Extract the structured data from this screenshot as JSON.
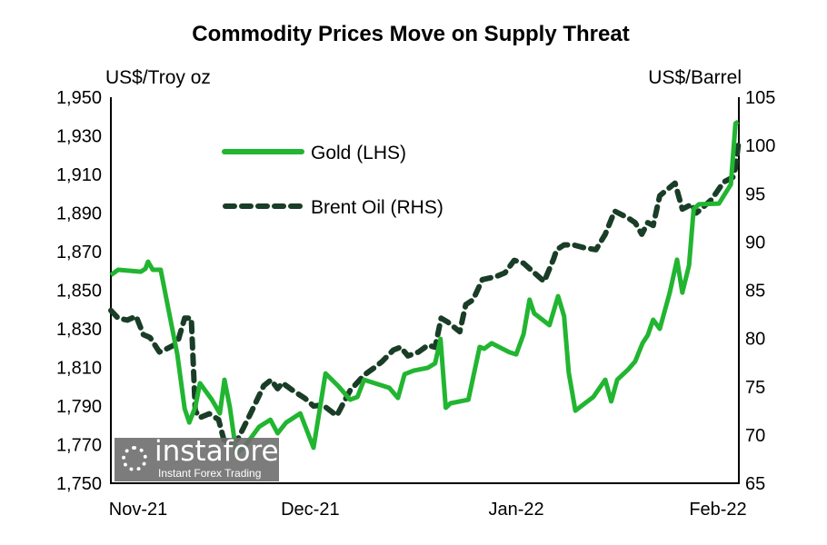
{
  "chart_data": {
    "type": "line",
    "title": "Commodity Prices Move on Supply Threat",
    "ylabel_left": "US$/Troy oz",
    "ylabel_right": "US$/Barrel",
    "xlabel": "",
    "x_units": "days since Nov 1, 2021",
    "xlim": [
      0,
      94.5
    ],
    "ylim_left": [
      1750,
      1950
    ],
    "ylim_right": [
      65,
      105
    ],
    "yticks_left": [
      "1,750",
      "1,770",
      "1,790",
      "1,810",
      "1,830",
      "1,850",
      "1,870",
      "1,890",
      "1,910",
      "1,930",
      "1,950"
    ],
    "yticks_left_values": [
      1750,
      1770,
      1790,
      1810,
      1830,
      1850,
      1870,
      1890,
      1910,
      1930,
      1950
    ],
    "yticks_right": [
      "65",
      "70",
      "75",
      "80",
      "85",
      "90",
      "95",
      "100",
      "105"
    ],
    "yticks_right_values": [
      65,
      70,
      75,
      80,
      85,
      90,
      95,
      100,
      105
    ],
    "xticks": [
      {
        "label": "Nov-21",
        "x": 0
      },
      {
        "label": "Dec-21",
        "x": 30
      },
      {
        "label": "Jan-22",
        "x": 61
      },
      {
        "label": "Feb-22",
        "x": 92
      }
    ],
    "grid": false,
    "legend_position": "top-left",
    "series": [
      {
        "name": "Gold (LHS)",
        "axis": "left",
        "color": "#22b532",
        "style": "solid",
        "x": [
          0,
          1.1,
          4.5,
          5.2,
          5.6,
          6.3,
          7.5,
          10,
          11.1,
          11.8,
          12.7,
          13.4,
          15.2,
          16.4,
          17.1,
          17.9,
          18.9,
          20.3,
          22.3,
          24,
          25.1,
          26.4,
          28.5,
          30.5,
          32.3,
          34.2,
          36,
          37.1,
          38.1,
          39.7,
          41.9,
          43.2,
          44.2,
          45.6,
          47.7,
          48.8,
          49.6,
          50.4,
          51.1,
          53.8,
          55.5,
          56.2,
          57.3,
          60,
          61,
          62.1,
          63,
          63.7,
          66,
          67.3,
          68.2,
          68.9,
          69.9,
          71,
          72.6,
          74.4,
          75.3,
          76.2,
          77.8,
          78.9,
          80,
          80.8,
          81.6,
          82.6,
          84.1,
          85.2,
          86,
          87,
          87.7,
          88.5,
          91.5,
          93.3,
          94,
          94.4
        ],
        "y": [
          1857.8,
          1860.6,
          1859.6,
          1861.1,
          1864.8,
          1860.6,
          1860.6,
          1816.8,
          1788.6,
          1781.5,
          1789.5,
          1801.8,
          1793.3,
          1786.2,
          1803.6,
          1789.5,
          1765.1,
          1769.8,
          1779.2,
          1782.9,
          1775.9,
          1781.5,
          1786.2,
          1768.4,
          1806.9,
          1800.4,
          1793.3,
          1794.7,
          1803.6,
          1801.8,
          1799.4,
          1794.2,
          1806.5,
          1808.4,
          1809.8,
          1812.1,
          1824.8,
          1789.1,
          1791.4,
          1793.3,
          1820.6,
          1819.7,
          1822.5,
          1817.8,
          1816.8,
          1827.2,
          1845.1,
          1838,
          1831.9,
          1846.9,
          1836.6,
          1807.4,
          1787.6,
          1790.5,
          1794.7,
          1803.6,
          1792.4,
          1803.6,
          1808.8,
          1813.1,
          1822.5,
          1826.7,
          1834.7,
          1830,
          1848.8,
          1865.8,
          1848.8,
          1862.9,
          1892.1,
          1894.5,
          1894.9,
          1904.8,
          1936.4,
          1937.3
        ]
      },
      {
        "name": "Brent Oil (RHS)",
        "axis": "right",
        "color": "#1a3d27",
        "style": "dashed",
        "x": [
          0,
          1.1,
          2.5,
          3.8,
          4.9,
          5.9,
          7.3,
          8.6,
          10,
          11.1,
          12.1,
          12.7,
          13.4,
          14.8,
          16.2,
          17,
          18.2,
          19.2,
          21,
          23,
          24.1,
          25.1,
          25.8,
          27.4,
          29.2,
          30.5,
          31.9,
          34,
          35.3,
          36,
          38.1,
          39.7,
          40.8,
          42.5,
          43.6,
          44.7,
          46.3,
          47.7,
          48.8,
          49.7,
          50.7,
          52.5,
          53.4,
          54.5,
          55.9,
          57.9,
          59.3,
          60.7,
          62.1,
          63.4,
          65.2,
          66.6,
          67.1,
          68.2,
          69.6,
          71.2,
          73,
          74.4,
          75.8,
          77.8,
          78.9,
          79.9,
          80.8,
          81.6,
          82.6,
          84.9,
          86,
          87.4,
          88.1,
          88.8,
          90.4,
          92.2,
          93.6,
          94,
          94.4
        ],
        "y": [
          82.9,
          82.1,
          81.9,
          82.3,
          80.4,
          80.1,
          78.6,
          79,
          79.5,
          82.1,
          82.1,
          72.5,
          71.8,
          72.2,
          71.6,
          69.5,
          69.1,
          69.7,
          72.2,
          75.1,
          75.7,
          74.8,
          75.4,
          74.6,
          73.8,
          73,
          73.1,
          72,
          73.7,
          74.6,
          76.2,
          77,
          77.6,
          78.8,
          79.1,
          78.2,
          78.6,
          79.3,
          79.1,
          82.1,
          81.7,
          80.7,
          83.5,
          84,
          86.1,
          86.4,
          86.8,
          88.1,
          87.8,
          87,
          85.9,
          88.2,
          89.2,
          89.7,
          89.7,
          89.4,
          89.2,
          90.8,
          93.2,
          92.5,
          92,
          90.8,
          92,
          91.7,
          94.8,
          96.1,
          93.4,
          93.9,
          93,
          93.4,
          94.4,
          96.2,
          96.7,
          97.7,
          100
        ]
      }
    ]
  },
  "watermark": {
    "name": "instaforex",
    "tagline": "Instant Forex Trading"
  }
}
